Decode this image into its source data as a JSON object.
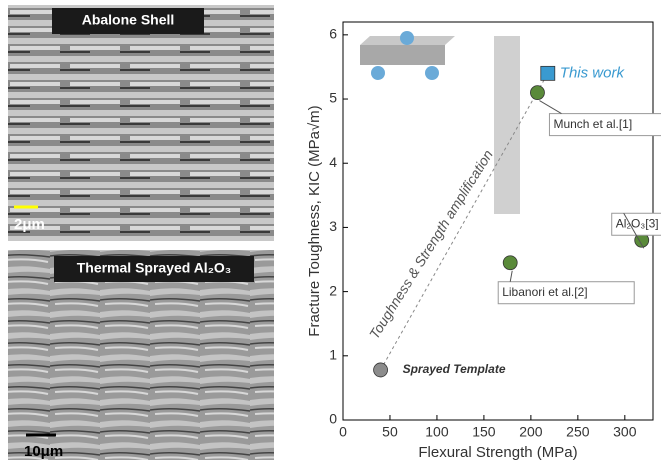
{
  "panels": [
    {
      "label": "Abalone Shell",
      "scale_bar": "2μm"
    },
    {
      "label": "Thermal Sprayed Al₂O₃",
      "scale_bar": "10μm"
    }
  ],
  "chart_data": {
    "type": "scatter",
    "xlabel": "Flexural Strength (MPa)",
    "ylabel": "Fracture Toughness, KIC (MPa√m)",
    "annotation": "Toughness & Strength amplification",
    "xlim": [
      0,
      330
    ],
    "xticks": [
      0,
      50,
      100,
      150,
      200,
      250,
      300
    ],
    "ylim": [
      0,
      6.2
    ],
    "yticks": [
      0,
      1,
      2,
      3,
      4,
      5,
      6
    ],
    "series": [
      {
        "name": "Sprayed Template",
        "color": "#8c8c8c",
        "marker": "circle",
        "x": [
          40
        ],
        "values": [
          0.78
        ]
      },
      {
        "name": "Libanori et al.[2]",
        "color": "#5a8a3a",
        "marker": "circle",
        "x": [
          178
        ],
        "values": [
          2.45
        ]
      },
      {
        "name": "Munch et al.[1]",
        "color": "#5a8a3a",
        "marker": "circle",
        "x": [
          207
        ],
        "values": [
          5.1
        ]
      },
      {
        "name": "Al₂O₃[3]",
        "color": "#5a8a3a",
        "marker": "circle",
        "x": [
          318
        ],
        "values": [
          2.8
        ]
      },
      {
        "name": "This work",
        "color": "#3a9ad0",
        "marker": "square",
        "x": [
          218
        ],
        "values": [
          5.4
        ]
      }
    ]
  }
}
